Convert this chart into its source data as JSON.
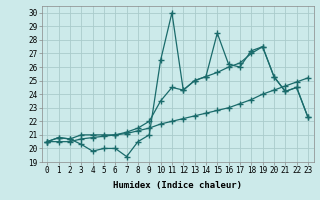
{
  "title": "",
  "xlabel": "Humidex (Indice chaleur)",
  "ylabel": "",
  "bg_color": "#cceaea",
  "line_color": "#1a6b6b",
  "grid_color": "#aacccc",
  "xlim": [
    -0.5,
    23.5
  ],
  "ylim": [
    19,
    30.5
  ],
  "yticks": [
    19,
    20,
    21,
    22,
    23,
    24,
    25,
    26,
    27,
    28,
    29,
    30
  ],
  "xticks": [
    0,
    1,
    2,
    3,
    4,
    5,
    6,
    7,
    8,
    9,
    10,
    11,
    12,
    13,
    14,
    15,
    16,
    17,
    18,
    19,
    20,
    21,
    22,
    23
  ],
  "line1_x": [
    0,
    1,
    2,
    3,
    4,
    5,
    6,
    7,
    8,
    9,
    10,
    11,
    12,
    13,
    14,
    15,
    16,
    17,
    18,
    19,
    20,
    21,
    22,
    23
  ],
  "line1_y": [
    20.5,
    20.8,
    20.7,
    20.3,
    19.8,
    20.0,
    20.0,
    19.4,
    20.5,
    21.0,
    26.5,
    30.0,
    24.3,
    25.0,
    25.3,
    25.6,
    26.0,
    26.3,
    27.0,
    27.5,
    25.3,
    24.2,
    24.5,
    22.3
  ],
  "line2_x": [
    0,
    1,
    2,
    3,
    4,
    5,
    6,
    7,
    8,
    9,
    10,
    11,
    12,
    13,
    14,
    15,
    16,
    17,
    18,
    19,
    20,
    21,
    22,
    23
  ],
  "line2_y": [
    20.5,
    20.8,
    20.7,
    21.0,
    21.0,
    21.0,
    21.0,
    21.2,
    21.5,
    22.0,
    23.5,
    24.5,
    24.3,
    25.0,
    25.3,
    28.5,
    26.2,
    26.0,
    27.2,
    27.5,
    25.3,
    24.2,
    24.5,
    22.3
  ],
  "line3_x": [
    0,
    1,
    2,
    3,
    4,
    5,
    6,
    7,
    8,
    9,
    10,
    11,
    12,
    13,
    14,
    15,
    16,
    17,
    18,
    19,
    20,
    21,
    22,
    23
  ],
  "line3_y": [
    20.5,
    20.5,
    20.5,
    20.7,
    20.8,
    20.9,
    21.0,
    21.1,
    21.3,
    21.5,
    21.8,
    22.0,
    22.2,
    22.4,
    22.6,
    22.8,
    23.0,
    23.3,
    23.6,
    24.0,
    24.3,
    24.6,
    24.9,
    25.2
  ],
  "marker": "+",
  "marker_size": 4,
  "linewidth": 0.9,
  "label_fontsize": 6.5,
  "tick_fontsize": 5.5
}
